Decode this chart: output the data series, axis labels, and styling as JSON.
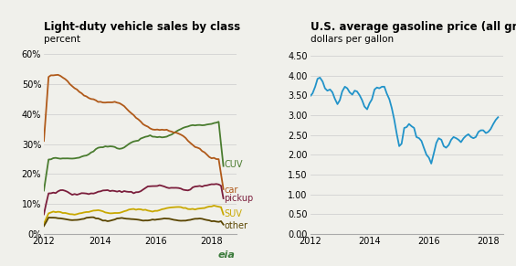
{
  "left_title": "Light-duty vehicle sales by class",
  "left_subtitle": "percent",
  "right_title": "U.S. average gasoline price (all grades)",
  "right_subtitle": "dollars per gallon",
  "left_ylim": [
    0,
    0.62
  ],
  "left_yticks": [
    0.0,
    0.1,
    0.2,
    0.3,
    0.4,
    0.5,
    0.6
  ],
  "right_ylim": [
    0,
    4.7
  ],
  "right_yticks": [
    0.0,
    0.5,
    1.0,
    1.5,
    2.0,
    2.5,
    3.0,
    3.5,
    4.0,
    4.5
  ],
  "xlim_left": [
    2012,
    2018.9
  ],
  "xlim_right": [
    2012,
    2018.5
  ],
  "xticks": [
    2012,
    2014,
    2016,
    2018
  ],
  "background_color": "#f0f0eb",
  "series_colors": {
    "CUV": "#4a7c2f",
    "car": "#b05a1a",
    "pickup": "#7b1e3c",
    "SUV": "#c9a800",
    "other": "#5a4500"
  },
  "gas_color": "#2193c9",
  "title_fontsize": 8.5,
  "subtitle_fontsize": 7.5,
  "label_fontsize": 7.0,
  "tick_fontsize": 7.0,
  "line_width": 1.3
}
